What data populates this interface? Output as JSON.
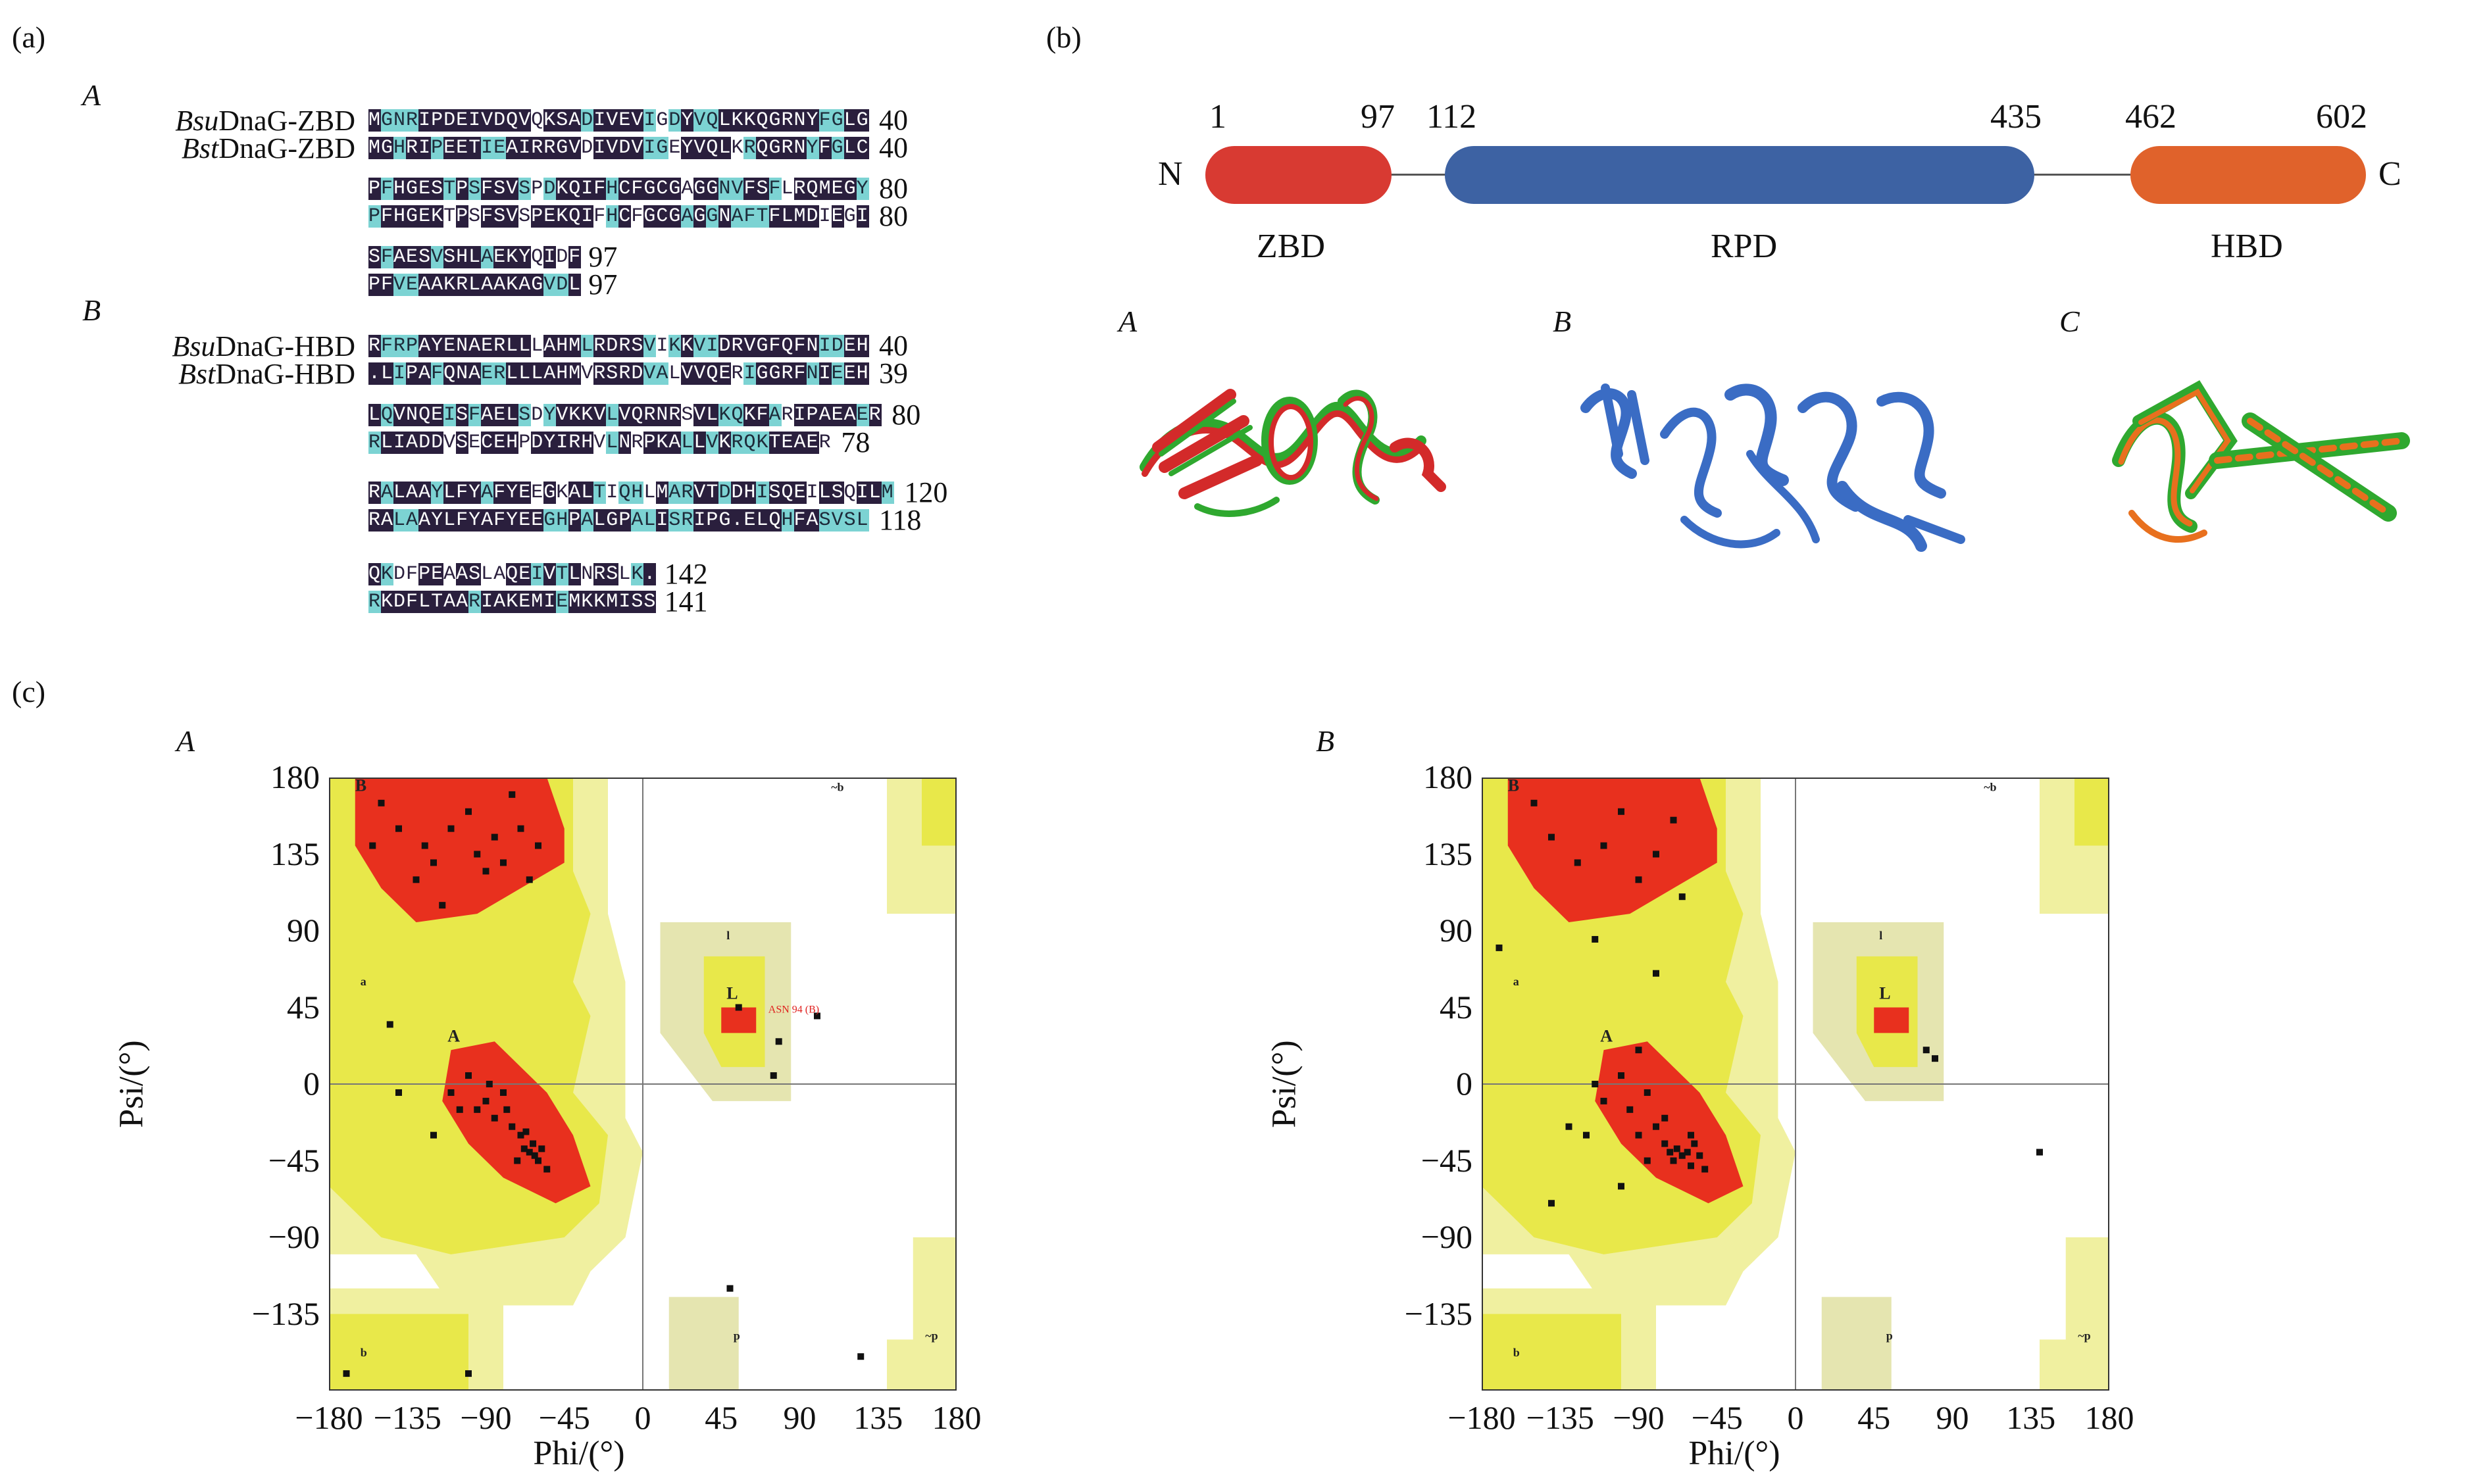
{
  "panel_a": {
    "label": "(a)",
    "sub_A": "A",
    "sub_B": "B",
    "zbd_rows": [
      {
        "name_it": "Bsu",
        "name_rest": "DnaG-ZBD",
        "seq": "MGNRIPDEIVDQVQKSADIVEVIGDYVQLKKQGRNYFGLG",
        "end": "40"
      },
      {
        "name_it": "Bst",
        "name_rest": "DnaG-ZBD",
        "seq": "MGHRIPEETIEAIRRGVDIVDVIGEYVQLKRQGRNYFGLC",
        "end": "40"
      },
      {
        "seq": "PFHGESTPSFSVSPDKQIFHCFGCGAGGNVFSFLRQMEGY",
        "end": "80"
      },
      {
        "seq": "PFHGEKTPSFSVSPEKQIFHCFGCGAGGNAFTFLMDIEGI",
        "end": "80"
      },
      {
        "seq": "SFAESVSHLAEKYQIDF",
        "end": "97"
      },
      {
        "seq": "PFVEAAKRLAAKAGVDL",
        "end": "97"
      }
    ],
    "hbd_rows": [
      {
        "name_it": "Bsu",
        "name_rest": "DnaG-HBD",
        "seq": "RFRPAYENAERLLLAHMLRDRSVIKKVIDRVGFQFNIDEH",
        "end": "40"
      },
      {
        "name_it": "Bst",
        "name_rest": "DnaG-HBD",
        "seq": ".LIPAFQNAERLLLAHMVRSRDVALVVQERIGGRFNIEEH",
        "end": "39"
      },
      {
        "seq": "LQVNQEISFAELSDYVKKVLVQRNRSVLKQKFARIPAEAER",
        "end": "80"
      },
      {
        "seq": "RLIADDVSECEHPDYIRHVLNRPKALLVKRQKTEAER",
        "end": "78"
      },
      {
        "seq": "RALAAYLFYAFYEEGKALTIQHLMARVTDDHISQEILSQILM",
        "end": "120"
      },
      {
        "seq": "RALAAYLFYAFYEEGHPALGPALISRIPG.ELQHFASVSL",
        "end": "118"
      },
      {
        "seq": "QKDFPEAASLAQEIVTLNRSLK.",
        "end": "142"
      },
      {
        "seq": "RKDFLTAARIAKEMIEMKKMISS",
        "end": "141"
      }
    ]
  },
  "panel_b": {
    "label": "(b)",
    "n_term": "N",
    "c_term": "C",
    "boundaries": [
      "1",
      "97",
      "112",
      "435",
      "462",
      "602"
    ],
    "domains": [
      {
        "name": "ZBD",
        "color": "#d83a32"
      },
      {
        "name": "RPD",
        "color": "#3d62a3"
      },
      {
        "name": "HBD",
        "color": "#e0622b"
      }
    ],
    "structures": [
      "A",
      "B",
      "C"
    ]
  },
  "panel_c": {
    "label": "(c)",
    "plots": [
      {
        "sub": "A",
        "annotation": "ASN 94 (B)"
      },
      {
        "sub": "B",
        "annotation": ""
      }
    ],
    "x_label": "Phi/(°)",
    "y_label": "Psi/(°)",
    "x_ticks": [
      "−180",
      "−135",
      "−90",
      "−45",
      "0",
      "45",
      "90",
      "135",
      "180"
    ],
    "y_ticks": [
      "180",
      "135",
      "90",
      "45",
      "0",
      "−45",
      "−90",
      "−135"
    ],
    "region_labels": [
      "B",
      "A",
      "L",
      "a",
      "b",
      "p",
      "l",
      "~b",
      "~p"
    ],
    "colors": {
      "core": "#e8301e",
      "allowed": "#e8e84a",
      "generous": "#f0f0a0",
      "glycine": "#e5e5b0"
    }
  },
  "chart_data": [
    {
      "type": "scatter",
      "title": "",
      "xlabel": "Phi/(°)",
      "ylabel": "Psi/(°)",
      "xlim": [
        -180,
        180
      ],
      "ylim": [
        -180,
        180
      ],
      "x_ticks": [
        -180,
        -135,
        -90,
        -45,
        0,
        45,
        90,
        135,
        180
      ],
      "y_ticks": [
        -135,
        -90,
        -45,
        0,
        45,
        90,
        135,
        180
      ],
      "series": [
        {
          "points": [
            [
              -150,
              165
            ],
            [
              -140,
              150
            ],
            [
              -125,
              140
            ],
            [
              -120,
              130
            ],
            [
              -110,
              150
            ],
            [
              -100,
              160
            ],
            [
              -95,
              135
            ],
            [
              -90,
              125
            ],
            [
              -85,
              145
            ],
            [
              -80,
              130
            ],
            [
              -70,
              150
            ],
            [
              -65,
              120
            ],
            [
              -60,
              140
            ],
            [
              -130,
              120
            ],
            [
              -75,
              170
            ],
            [
              -155,
              140
            ],
            [
              -115,
              105
            ],
            [
              -110,
              -5
            ],
            [
              -100,
              5
            ],
            [
              -95,
              -15
            ],
            [
              -90,
              -10
            ],
            [
              -85,
              -20
            ],
            [
              -80,
              -5
            ],
            [
              -75,
              -25
            ],
            [
              -70,
              -30
            ],
            [
              -68,
              -38
            ],
            [
              -65,
              -40
            ],
            [
              -62,
              -42
            ],
            [
              -60,
              -45
            ],
            [
              -58,
              -38
            ],
            [
              -55,
              -50
            ],
            [
              -63,
              -35
            ],
            [
              -67,
              -28
            ],
            [
              -72,
              -45
            ],
            [
              -78,
              -15
            ],
            [
              -88,
              0
            ],
            [
              -105,
              -15
            ],
            [
              -120,
              -30
            ],
            [
              -140,
              -5
            ],
            [
              55,
              45
            ],
            [
              78,
              25
            ],
            [
              100,
              40
            ],
            [
              75,
              5
            ],
            [
              -170,
              -170
            ],
            [
              -100,
              -170
            ],
            [
              50,
              -120
            ],
            [
              125,
              -160
            ],
            [
              -145,
              35
            ]
          ]
        }
      ]
    },
    {
      "type": "scatter",
      "title": "",
      "xlabel": "Phi/(°)",
      "ylabel": "Psi/(°)",
      "xlim": [
        -180,
        180
      ],
      "ylim": [
        -180,
        180
      ],
      "x_ticks": [
        -180,
        -135,
        -90,
        -45,
        0,
        45,
        90,
        135,
        180
      ],
      "y_ticks": [
        -135,
        -90,
        -45,
        0,
        45,
        90,
        135,
        180
      ],
      "series": [
        {
          "points": [
            [
              -150,
              165
            ],
            [
              -140,
              145
            ],
            [
              -125,
              130
            ],
            [
              -110,
              140
            ],
            [
              -100,
              160
            ],
            [
              -90,
              120
            ],
            [
              -80,
              135
            ],
            [
              -70,
              155
            ],
            [
              -65,
              110
            ],
            [
              -115,
              85
            ],
            [
              -170,
              80
            ],
            [
              -80,
              65
            ],
            [
              -85,
              -5
            ],
            [
              -95,
              -15
            ],
            [
              -100,
              5
            ],
            [
              -90,
              -30
            ],
            [
              -80,
              -25
            ],
            [
              -75,
              -35
            ],
            [
              -72,
              -40
            ],
            [
              -70,
              -45
            ],
            [
              -68,
              -38
            ],
            [
              -65,
              -42
            ],
            [
              -62,
              -40
            ],
            [
              -60,
              -48
            ],
            [
              -58,
              -35
            ],
            [
              -55,
              -42
            ],
            [
              -52,
              -50
            ],
            [
              -60,
              -30
            ],
            [
              -75,
              -20
            ],
            [
              -85,
              -45
            ],
            [
              -110,
              -10
            ],
            [
              -120,
              -30
            ],
            [
              -130,
              -25
            ],
            [
              -115,
              0
            ],
            [
              -100,
              -60
            ],
            [
              -140,
              -70
            ],
            [
              75,
              20
            ],
            [
              80,
              15
            ],
            [
              140,
              -40
            ],
            [
              -90,
              20
            ]
          ]
        }
      ]
    }
  ]
}
